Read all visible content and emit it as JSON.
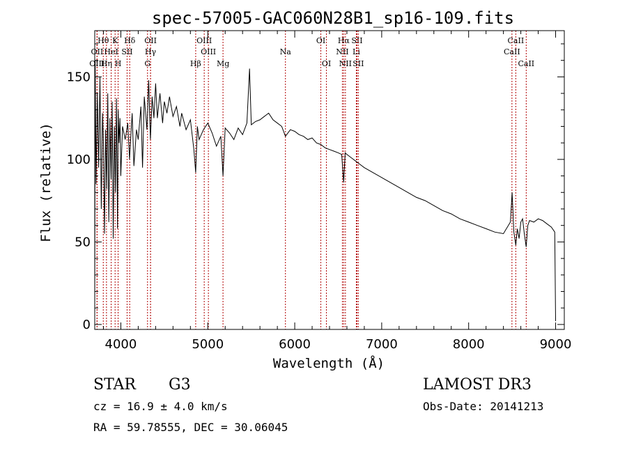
{
  "chart_data": {
    "type": "line",
    "title": "spec-57005-GAC060N28B1_sp16-109.fits",
    "xlabel": "Wavelength (Å)",
    "ylabel": "Flux (relative)",
    "xlim": [
      3700,
      9100
    ],
    "ylim": [
      -3,
      178
    ],
    "xticks": [
      4000,
      5000,
      6000,
      7000,
      8000,
      9000
    ],
    "yticks": [
      0,
      50,
      100,
      150
    ],
    "series": [
      {
        "name": "Flux",
        "x": [
          3700,
          3705,
          3715,
          3730,
          3745,
          3760,
          3775,
          3790,
          3800,
          3812,
          3825,
          3838,
          3850,
          3862,
          3875,
          3888,
          3900,
          3912,
          3925,
          3938,
          3950,
          3962,
          3970,
          3980,
          3990,
          4000,
          4020,
          4050,
          4080,
          4100,
          4130,
          4150,
          4180,
          4200,
          4230,
          4250,
          4270,
          4300,
          4320,
          4340,
          4360,
          4380,
          4400,
          4420,
          4450,
          4480,
          4500,
          4530,
          4560,
          4600,
          4640,
          4680,
          4700,
          4750,
          4800,
          4840,
          4861,
          4880,
          4900,
          4950,
          5000,
          5050,
          5100,
          5150,
          5175,
          5200,
          5250,
          5300,
          5350,
          5400,
          5450,
          5480,
          5500,
          5550,
          5600,
          5650,
          5700,
          5750,
          5800,
          5850,
          5893,
          5950,
          6000,
          6050,
          6100,
          6150,
          6200,
          6250,
          6300,
          6350,
          6400,
          6450,
          6500,
          6540,
          6563,
          6580,
          6600,
          6650,
          6700,
          6750,
          6800,
          6900,
          7000,
          7100,
          7200,
          7300,
          7400,
          7500,
          7600,
          7700,
          7800,
          7900,
          8000,
          8100,
          8200,
          8300,
          8400,
          8480,
          8500,
          8520,
          8542,
          8560,
          8580,
          8600,
          8620,
          8640,
          8662,
          8680,
          8700,
          8750,
          8800,
          8850,
          8900,
          8950,
          8990,
          9000
        ],
        "y": [
          5,
          160,
          85,
          140,
          95,
          150,
          70,
          128,
          110,
          55,
          118,
          82,
          140,
          62,
          125,
          88,
          135,
          52,
          120,
          80,
          137,
          58,
          130,
          110,
          125,
          90,
          120,
          112,
          122,
          100,
          128,
          96,
          118,
          112,
          132,
          95,
          138,
          118,
          148,
          112,
          138,
          125,
          146,
          125,
          140,
          122,
          135,
          128,
          138,
          126,
          132,
          120,
          128,
          118,
          124,
          106,
          92,
          120,
          112,
          118,
          122,
          116,
          108,
          114,
          90,
          119,
          116,
          112,
          119,
          115,
          122,
          155,
          121,
          123,
          124,
          126,
          128,
          124,
          122,
          120,
          114,
          118,
          117,
          115,
          114,
          112,
          113,
          110,
          109,
          107,
          106,
          105,
          104,
          103,
          86,
          104,
          103,
          101,
          99,
          97,
          95,
          92,
          89,
          86,
          83,
          80,
          77,
          75,
          72,
          69,
          67,
          64,
          62,
          60,
          58,
          56,
          55,
          62,
          80,
          56,
          48,
          58,
          52,
          62,
          64,
          55,
          47,
          60,
          63,
          62,
          64,
          63,
          61,
          59,
          56,
          2
        ]
      }
    ],
    "lines": [
      {
        "label": "Hθ",
        "x": 3798,
        "row": 1
      },
      {
        "label": "OII",
        "x": 3727,
        "row": 2
      },
      {
        "label": "OIII",
        "x": 3726,
        "row": 3
      },
      {
        "label": "K",
        "x": 3934,
        "row": 1
      },
      {
        "label": "HeI",
        "x": 3889,
        "row": 2
      },
      {
        "label": "Hη",
        "x": 3835,
        "row": 3
      },
      {
        "label": "Hδ",
        "x": 4102,
        "row": 1
      },
      {
        "label": "SII",
        "x": 4072,
        "row": 2
      },
      {
        "label": "H",
        "x": 3969,
        "row": 3
      },
      {
        "label": "OII",
        "x": 4342,
        "row": 1
      },
      {
        "label": "Hγ",
        "x": 4341,
        "row": 2
      },
      {
        "label": "G",
        "x": 4307,
        "row": 3
      },
      {
        "label": "OIII",
        "x": 4959,
        "row": 1
      },
      {
        "label": "OIII",
        "x": 5007,
        "row": 2
      },
      {
        "label": "Hβ",
        "x": 4861,
        "row": 3
      },
      {
        "label": "Mg",
        "x": 5175,
        "row": 3
      },
      {
        "label": "Na",
        "x": 5893,
        "row": 2
      },
      {
        "label": "OI",
        "x": 6300,
        "row": 1
      },
      {
        "label": "OI",
        "x": 6364,
        "row": 3
      },
      {
        "label": "Hα",
        "x": 6563,
        "row": 1
      },
      {
        "label": "SII",
        "x": 6716,
        "row": 1
      },
      {
        "label": "NII",
        "x": 6548,
        "row": 2
      },
      {
        "label": "Li",
        "x": 6708,
        "row": 2
      },
      {
        "label": "NII",
        "x": 6583,
        "row": 3
      },
      {
        "label": "SII",
        "x": 6731,
        "row": 3
      },
      {
        "label": "CaII",
        "x": 8542,
        "row": 1
      },
      {
        "label": "CaII",
        "x": 8498,
        "row": 2
      },
      {
        "label": "CaII",
        "x": 8662,
        "row": 3
      }
    ],
    "grid": false,
    "legend": "none"
  },
  "info": {
    "object_class": "STAR",
    "subclass": "G3",
    "survey": "LAMOST DR3",
    "redshift": "cz = 16.9 ± 4.0 km/s",
    "obs_date": "Obs-Date: 20141213",
    "coords": "RA =  59.78555, DEC =  30.06045"
  },
  "colors": {
    "line_marker": "#b00000",
    "spectrum": "#000000"
  }
}
